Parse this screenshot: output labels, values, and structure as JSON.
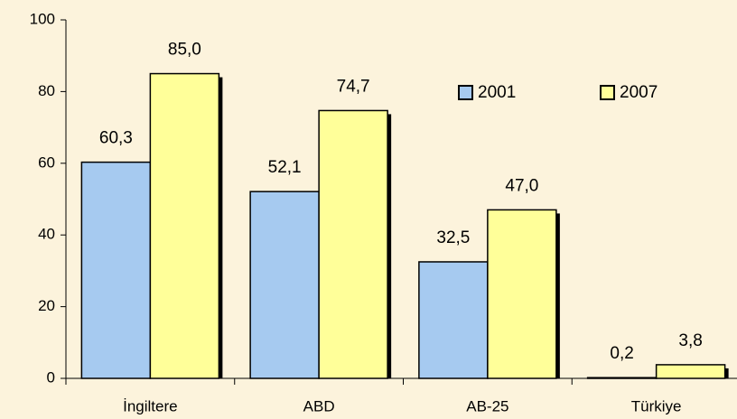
{
  "chart_data": {
    "type": "bar",
    "categories": [
      "İngiltere",
      "ABD",
      "AB-25",
      "Türkiye"
    ],
    "series": [
      {
        "name": "2001",
        "color": "#a6caf0",
        "values": [
          60.3,
          52.1,
          32.5,
          0.2
        ],
        "value_labels": [
          "60,3",
          "52,1",
          "32,5",
          "0,2"
        ]
      },
      {
        "name": "2007",
        "color": "#ffff99",
        "values": [
          85.0,
          74.7,
          47.0,
          3.8
        ],
        "value_labels": [
          "85,0",
          "74,7",
          "47,0",
          "3,8"
        ]
      }
    ],
    "ylim": [
      0,
      100
    ],
    "yticks": [
      0,
      20,
      40,
      60,
      80,
      100
    ],
    "legend": "upper right"
  }
}
